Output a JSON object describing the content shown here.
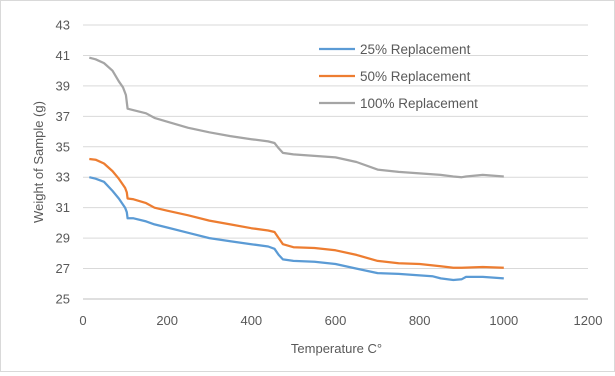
{
  "chart_data": {
    "type": "line",
    "title": "",
    "xlabel": "Temperature C°",
    "ylabel": "Weight of Sample (g)",
    "xlim": [
      0,
      1200
    ],
    "ylim": [
      25,
      43
    ],
    "x_ticks": [
      0,
      200,
      400,
      600,
      800,
      1000,
      1200
    ],
    "y_ticks": [
      25,
      27,
      29,
      31,
      33,
      35,
      37,
      39,
      41,
      43
    ],
    "grid": "horizontal",
    "legend_position": "top-right",
    "series": [
      {
        "name": "25% Replacement",
        "color": "#5b9bd5",
        "points": [
          [
            15,
            33.0
          ],
          [
            30,
            32.9
          ],
          [
            50,
            32.7
          ],
          [
            70,
            32.1
          ],
          [
            85,
            31.6
          ],
          [
            100,
            31.0
          ],
          [
            104,
            30.7
          ],
          [
            106,
            30.3
          ],
          [
            120,
            30.3
          ],
          [
            150,
            30.1
          ],
          [
            170,
            29.9
          ],
          [
            200,
            29.7
          ],
          [
            250,
            29.35
          ],
          [
            300,
            29.0
          ],
          [
            350,
            28.8
          ],
          [
            400,
            28.6
          ],
          [
            440,
            28.45
          ],
          [
            455,
            28.3
          ],
          [
            465,
            27.9
          ],
          [
            475,
            27.6
          ],
          [
            500,
            27.5
          ],
          [
            550,
            27.45
          ],
          [
            600,
            27.3
          ],
          [
            650,
            27.0
          ],
          [
            700,
            26.7
          ],
          [
            750,
            26.65
          ],
          [
            800,
            26.55
          ],
          [
            830,
            26.5
          ],
          [
            850,
            26.35
          ],
          [
            880,
            26.25
          ],
          [
            900,
            26.3
          ],
          [
            910,
            26.45
          ],
          [
            950,
            26.45
          ],
          [
            1000,
            26.35
          ]
        ]
      },
      {
        "name": "50% Replacement",
        "color": "#ed7d31",
        "points": [
          [
            15,
            34.2
          ],
          [
            30,
            34.15
          ],
          [
            50,
            33.9
          ],
          [
            70,
            33.4
          ],
          [
            85,
            32.9
          ],
          [
            100,
            32.3
          ],
          [
            104,
            32.0
          ],
          [
            106,
            31.6
          ],
          [
            120,
            31.55
          ],
          [
            150,
            31.3
          ],
          [
            170,
            31.0
          ],
          [
            200,
            30.8
          ],
          [
            250,
            30.5
          ],
          [
            300,
            30.15
          ],
          [
            350,
            29.9
          ],
          [
            400,
            29.65
          ],
          [
            440,
            29.5
          ],
          [
            455,
            29.4
          ],
          [
            465,
            29.0
          ],
          [
            475,
            28.6
          ],
          [
            500,
            28.4
          ],
          [
            550,
            28.35
          ],
          [
            600,
            28.2
          ],
          [
            650,
            27.9
          ],
          [
            700,
            27.5
          ],
          [
            750,
            27.35
          ],
          [
            800,
            27.3
          ],
          [
            850,
            27.15
          ],
          [
            880,
            27.05
          ],
          [
            900,
            27.05
          ],
          [
            950,
            27.1
          ],
          [
            1000,
            27.05
          ]
        ]
      },
      {
        "name": "100% Replacement",
        "color": "#a5a5a5",
        "points": [
          [
            15,
            40.85
          ],
          [
            30,
            40.75
          ],
          [
            50,
            40.5
          ],
          [
            70,
            40.0
          ],
          [
            85,
            39.3
          ],
          [
            95,
            38.9
          ],
          [
            102,
            38.4
          ],
          [
            106,
            37.5
          ],
          [
            120,
            37.4
          ],
          [
            150,
            37.2
          ],
          [
            170,
            36.9
          ],
          [
            200,
            36.65
          ],
          [
            250,
            36.25
          ],
          [
            300,
            35.95
          ],
          [
            350,
            35.7
          ],
          [
            400,
            35.5
          ],
          [
            440,
            35.35
          ],
          [
            455,
            35.25
          ],
          [
            465,
            34.9
          ],
          [
            475,
            34.6
          ],
          [
            500,
            34.5
          ],
          [
            550,
            34.4
          ],
          [
            600,
            34.3
          ],
          [
            650,
            34.0
          ],
          [
            700,
            33.5
          ],
          [
            750,
            33.35
          ],
          [
            800,
            33.25
          ],
          [
            850,
            33.15
          ],
          [
            880,
            33.05
          ],
          [
            900,
            33.0
          ],
          [
            910,
            33.05
          ],
          [
            950,
            33.15
          ],
          [
            1000,
            33.05
          ]
        ]
      }
    ]
  }
}
